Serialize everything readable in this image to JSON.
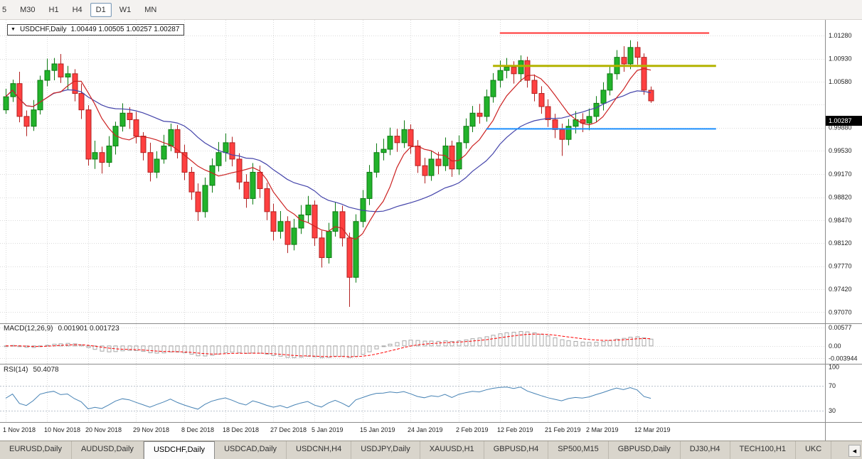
{
  "toolbar": {
    "timeframes": [
      {
        "label": "5",
        "active": false
      },
      {
        "label": "M30",
        "active": false
      },
      {
        "label": "H1",
        "active": false
      },
      {
        "label": "H4",
        "active": false
      },
      {
        "label": "D1",
        "active": true
      },
      {
        "label": "W1",
        "active": false
      },
      {
        "label": "MN",
        "active": false
      }
    ]
  },
  "chart": {
    "title": "USDCHF,Daily",
    "ohlc_text": "1.00449 1.00505 1.00257 1.00287",
    "current_price": "1.00287",
    "price_max": 1.0152,
    "price_min": 0.969,
    "price_axis_labels": [
      {
        "text": "1.01280",
        "value": 1.0128
      },
      {
        "text": "1.00930",
        "value": 1.0093
      },
      {
        "text": "1.00580",
        "value": 1.0058
      },
      {
        "text": "0.99880",
        "value": 0.9988
      },
      {
        "text": "0.99530",
        "value": 0.9953
      },
      {
        "text": "0.99170",
        "value": 0.9917
      },
      {
        "text": "0.98820",
        "value": 0.9882
      },
      {
        "text": "0.98470",
        "value": 0.9847
      },
      {
        "text": "0.98120",
        "value": 0.9812
      },
      {
        "text": "0.97770",
        "value": 0.9777
      },
      {
        "text": "0.97420",
        "value": 0.9742
      },
      {
        "text": "0.97070",
        "value": 0.9707
      }
    ],
    "grid_extra_prices": [
      1.0023
    ],
    "hlines": [
      {
        "name": "resistance-line",
        "price": 1.0132,
        "from_index": 72,
        "to_index": 102.5,
        "color_key": "hline_red",
        "width": 2
      },
      {
        "name": "breakout-level-line",
        "price": 1.0082,
        "from_index": 71,
        "to_index": 103.5,
        "color_key": "hline_yellow",
        "width": 3
      },
      {
        "name": "support-line",
        "price": 0.9986,
        "from_index": 70,
        "to_index": 103.5,
        "color_key": "hline_blue",
        "width": 2
      }
    ],
    "colors": {
      "bull": "#22b32b",
      "bull_border": "#0c7a12",
      "bear": "#ff4040",
      "bear_border": "#b22222",
      "ma_fast": "#cc2222",
      "ma_slow": "#4444aa",
      "hline_red": "#ff3333",
      "hline_yellow": "#b3b300",
      "hline_blue": "#1e90ff",
      "macd_hist": "#a8a8a8",
      "macd_signal": "#ff0000",
      "rsi": "#4682b4",
      "rsi_level": "#b9c2cc",
      "grid": "#dadada",
      "axis_text": "#222222",
      "separator": "#8c8c8c",
      "badge_bg": "#000000",
      "badge_text": "#ffffff"
    }
  },
  "chart_data": {
    "type": "candlestick",
    "symbol": "USDCHF",
    "timeframe": "Daily",
    "ma_fast_period": 7,
    "ma_slow_period": 22,
    "date_ticks": [
      {
        "label": "1 Nov 2018",
        "index": 0
      },
      {
        "label": "10 Nov 2018",
        "index": 6
      },
      {
        "label": "20 Nov 2018",
        "index": 12
      },
      {
        "label": "29 Nov 2018",
        "index": 19
      },
      {
        "label": "8 Dec 2018",
        "index": 26
      },
      {
        "label": "18 Dec 2018",
        "index": 32
      },
      {
        "label": "27 Dec 2018",
        "index": 39
      },
      {
        "label": "5 Jan 2019",
        "index": 45
      },
      {
        "label": "15 Jan 2019",
        "index": 52
      },
      {
        "label": "24 Jan 2019",
        "index": 59
      },
      {
        "label": "2 Feb 2019",
        "index": 66
      },
      {
        "label": "12 Feb 2019",
        "index": 72
      },
      {
        "label": "21 Feb 2019",
        "index": 79
      },
      {
        "label": "2 Mar 2019",
        "index": 85
      },
      {
        "label": "12 Mar 2019",
        "index": 92
      }
    ],
    "ohlc": [
      [
        1.0015,
        1.0047,
        1.0009,
        1.0035
      ],
      [
        1.0035,
        1.0061,
        1.0027,
        1.0055
      ],
      [
        1.0055,
        1.0073,
        0.9996,
        1.0005
      ],
      [
        1.0005,
        1.0014,
        0.9975,
        0.999
      ],
      [
        0.999,
        1.003,
        0.9983,
        1.0015
      ],
      [
        1.0015,
        1.0067,
        1.0008,
        1.006
      ],
      [
        1.006,
        1.0093,
        1.0051,
        1.0075
      ],
      [
        1.0075,
        1.0094,
        1.006,
        1.0085
      ],
      [
        1.0085,
        1.01,
        1.0056,
        1.0065
      ],
      [
        1.0065,
        1.0082,
        1.0045,
        1.007
      ],
      [
        1.007,
        1.0077,
        1.0028,
        1.004
      ],
      [
        1.004,
        1.0055,
        1.0001,
        1.0015
      ],
      [
        1.0015,
        1.0022,
        0.993,
        0.994
      ],
      [
        0.994,
        0.9968,
        0.9925,
        0.995
      ],
      [
        0.995,
        0.9959,
        0.9918,
        0.9935
      ],
      [
        0.9935,
        0.9975,
        0.9928,
        0.996
      ],
      [
        0.996,
        0.9997,
        0.9947,
        0.999
      ],
      [
        0.999,
        1.0025,
        0.9982,
        1.001
      ],
      [
        1.001,
        1.0019,
        0.9986,
        1.0
      ],
      [
        1.0,
        1.0012,
        0.9964,
        0.9975
      ],
      [
        0.9975,
        0.9981,
        0.9938,
        0.995
      ],
      [
        0.995,
        0.9965,
        0.9906,
        0.992
      ],
      [
        0.992,
        0.9952,
        0.9911,
        0.994
      ],
      [
        0.994,
        0.9977,
        0.9933,
        0.996
      ],
      [
        0.996,
        0.9994,
        0.9952,
        0.9985
      ],
      [
        0.9985,
        0.9992,
        0.9941,
        0.995
      ],
      [
        0.995,
        0.9962,
        0.9908,
        0.992
      ],
      [
        0.992,
        0.9928,
        0.9878,
        0.989
      ],
      [
        0.989,
        0.9903,
        0.9846,
        0.986
      ],
      [
        0.986,
        0.9912,
        0.9851,
        0.99
      ],
      [
        0.99,
        0.9941,
        0.9889,
        0.993
      ],
      [
        0.993,
        0.9966,
        0.9921,
        0.995
      ],
      [
        0.995,
        0.9979,
        0.9936,
        0.9965
      ],
      [
        0.9965,
        0.9974,
        0.9929,
        0.994
      ],
      [
        0.994,
        0.9949,
        0.9894,
        0.9905
      ],
      [
        0.9905,
        0.9917,
        0.9866,
        0.988
      ],
      [
        0.988,
        0.9934,
        0.9871,
        0.992
      ],
      [
        0.992,
        0.993,
        0.9881,
        0.9895
      ],
      [
        0.9895,
        0.9904,
        0.9847,
        0.986
      ],
      [
        0.986,
        0.9872,
        0.9816,
        0.983
      ],
      [
        0.983,
        0.9861,
        0.9819,
        0.9845
      ],
      [
        0.9845,
        0.9853,
        0.9797,
        0.981
      ],
      [
        0.981,
        0.9849,
        0.9801,
        0.9835
      ],
      [
        0.9835,
        0.987,
        0.9826,
        0.9855
      ],
      [
        0.9855,
        0.9884,
        0.9843,
        0.987
      ],
      [
        0.987,
        0.9877,
        0.9808,
        0.982
      ],
      [
        0.982,
        0.9831,
        0.9775,
        0.979
      ],
      [
        0.979,
        0.9843,
        0.9781,
        0.983
      ],
      [
        0.983,
        0.9874,
        0.9822,
        0.986
      ],
      [
        0.986,
        0.9869,
        0.9807,
        0.982
      ],
      [
        0.982,
        0.9828,
        0.9715,
        0.976
      ],
      [
        0.976,
        0.9856,
        0.9752,
        0.9845
      ],
      [
        0.9845,
        0.9893,
        0.9836,
        0.988
      ],
      [
        0.988,
        0.9931,
        0.987,
        0.992
      ],
      [
        0.992,
        0.9964,
        0.9912,
        0.995
      ],
      [
        0.995,
        0.9971,
        0.9938,
        0.9955
      ],
      [
        0.9955,
        0.9988,
        0.9946,
        0.9975
      ],
      [
        0.9975,
        0.9986,
        0.9951,
        0.9965
      ],
      [
        0.9965,
        0.9999,
        0.9957,
        0.9985
      ],
      [
        0.9985,
        0.9993,
        0.9948,
        0.996
      ],
      [
        0.996,
        0.9969,
        0.9919,
        0.993
      ],
      [
        0.993,
        0.9942,
        0.9903,
        0.9915
      ],
      [
        0.9915,
        0.9953,
        0.9907,
        0.994
      ],
      [
        0.994,
        0.9951,
        0.9917,
        0.993
      ],
      [
        0.993,
        0.9973,
        0.9922,
        0.996
      ],
      [
        0.996,
        0.9968,
        0.9913,
        0.9925
      ],
      [
        0.9925,
        0.9976,
        0.9916,
        0.9965
      ],
      [
        0.9965,
        1.0002,
        0.9956,
        0.999
      ],
      [
        0.999,
        1.0021,
        0.9981,
        1.001
      ],
      [
        1.001,
        1.0024,
        0.9994,
        1.0005
      ],
      [
        1.0005,
        1.0046,
        0.9997,
        1.0035
      ],
      [
        1.0035,
        1.0071,
        1.0026,
        1.006
      ],
      [
        1.006,
        1.009,
        1.0049,
        1.0075
      ],
      [
        1.0075,
        1.0094,
        1.0063,
        1.008
      ],
      [
        1.008,
        1.0089,
        1.0055,
        1.007
      ],
      [
        1.007,
        1.0098,
        1.0058,
        1.009
      ],
      [
        1.009,
        1.0096,
        1.0049,
        1.006
      ],
      [
        1.006,
        1.0069,
        1.0028,
        1.004
      ],
      [
        1.004,
        1.0051,
        1.0009,
        1.002
      ],
      [
        1.002,
        1.0031,
        0.9989,
        1.0
      ],
      [
        1.0,
        1.0009,
        0.9972,
        0.9985
      ],
      [
        0.9985,
        0.9994,
        0.9945,
        0.997
      ],
      [
        0.997,
        1.0001,
        0.9961,
        0.999
      ],
      [
        0.999,
        1.0013,
        0.9979,
        1.0
      ],
      [
        1.0,
        1.001,
        0.9981,
        0.9995
      ],
      [
        0.9995,
        1.0017,
        0.9984,
        1.0005
      ],
      [
        1.0005,
        1.0036,
        0.9996,
        1.0025
      ],
      [
        1.0025,
        1.0057,
        1.0014,
        1.0045
      ],
      [
        1.0045,
        1.0082,
        1.0037,
        1.007
      ],
      [
        1.007,
        1.0106,
        1.0061,
        1.0095
      ],
      [
        1.0095,
        1.0112,
        1.0073,
        1.0085
      ],
      [
        1.0085,
        1.0121,
        1.0077,
        1.011
      ],
      [
        1.011,
        1.0119,
        1.0084,
        1.0095
      ],
      [
        1.0095,
        1.0101,
        1.0038,
        1.0045
      ],
      [
        1.00449,
        1.00505,
        1.00257,
        1.00287
      ]
    ]
  },
  "macd_panel": {
    "title": "MACD(12,26,9)",
    "values_text": "0.001901 0.001723",
    "vmax": 0.0065,
    "vmin": -0.005,
    "params": {
      "fast": 12,
      "slow": 26,
      "signal": 9
    },
    "axis_labels": [
      {
        "text": "0.00577",
        "value": 0.00577
      },
      {
        "text": "0.00",
        "value": 0
      },
      {
        "text": "-0.003944",
        "value": -0.003944
      }
    ]
  },
  "rsi_panel": {
    "title": "RSI(14)",
    "value_text": "50.4078",
    "period": 14,
    "vmax": 105,
    "vmin": 12,
    "levels": [
      70,
      30
    ],
    "axis_labels": [
      {
        "text": "100",
        "value": 100
      },
      {
        "text": "70",
        "value": 70
      },
      {
        "text": "30",
        "value": 30
      }
    ]
  },
  "tabs": {
    "scroll_button": "◀",
    "items": [
      {
        "label": "EURUSD,Daily",
        "active": false
      },
      {
        "label": "AUDUSD,Daily",
        "active": false
      },
      {
        "label": "USDCHF,Daily",
        "active": true
      },
      {
        "label": "USDCAD,Daily",
        "active": false
      },
      {
        "label": "USDCNH,H4",
        "active": false
      },
      {
        "label": "USDJPY,Daily",
        "active": false
      },
      {
        "label": "XAUUSD,H1",
        "active": false
      },
      {
        "label": "GBPUSD,H4",
        "active": false
      },
      {
        "label": "SP500,M15",
        "active": false
      },
      {
        "label": "GBPUSD,Daily",
        "active": false
      },
      {
        "label": "DJ30,H4",
        "active": false
      },
      {
        "label": "TECH100,H1",
        "active": false
      },
      {
        "label": "UKC",
        "active": false
      }
    ]
  }
}
